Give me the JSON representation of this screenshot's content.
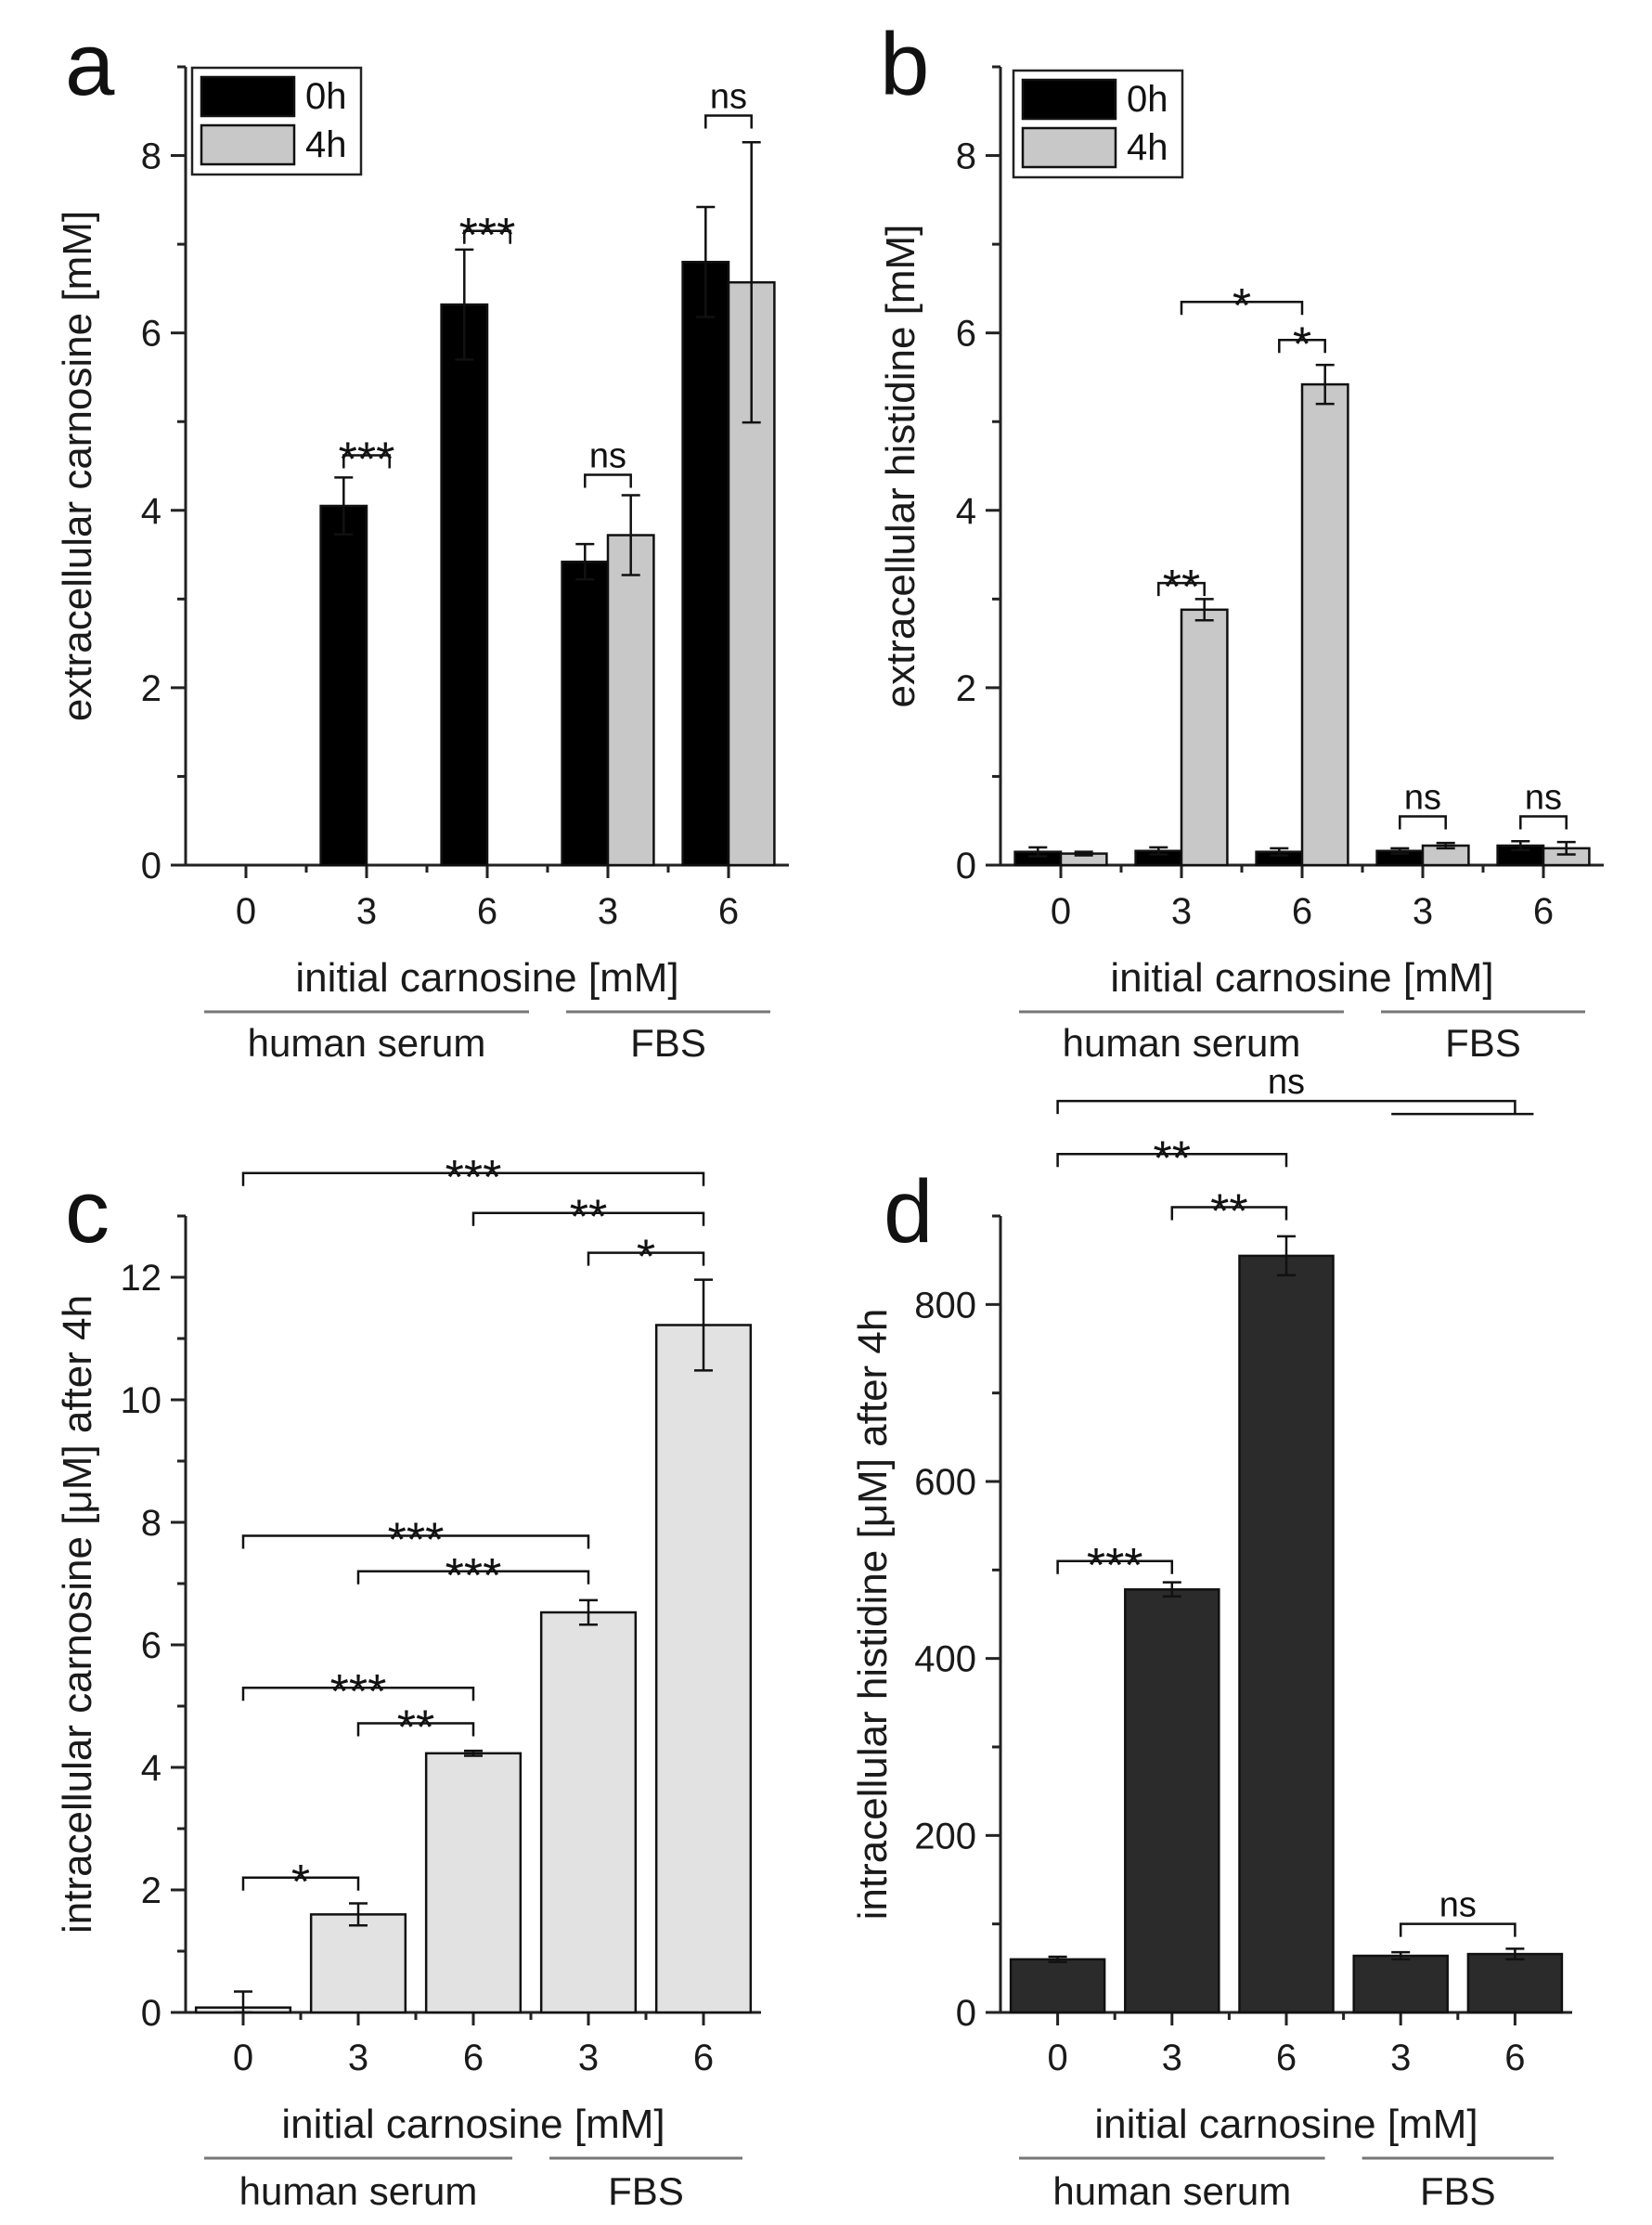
{
  "colors": {
    "black_bar": "#000000",
    "light_gray_bar": "#c8c8c8",
    "very_light_bar": "#e2e2e2",
    "dark_bar": "#2b2b2b",
    "axis": "#222222",
    "underline": "#777777"
  },
  "chart_data": [
    {
      "panel": "a",
      "type": "bar",
      "ylabel": "extracellular carnosine [mM]",
      "xlabel": "initial carnosine [mM]",
      "ylim": [
        0,
        9
      ],
      "yticks": [
        0,
        2,
        4,
        6,
        8
      ],
      "categories": [
        "0",
        "3",
        "6",
        "3",
        "6"
      ],
      "groups": [
        {
          "label": "human serum",
          "from": 0,
          "to": 2
        },
        {
          "label": "FBS",
          "from": 3,
          "to": 4
        }
      ],
      "legend": [
        "0h",
        "4h"
      ],
      "series": [
        {
          "name": "0h",
          "color": "black_bar",
          "values": [
            0,
            4.05,
            6.32,
            3.42,
            6.8
          ],
          "errors": [
            0,
            0.32,
            0.62,
            0.2,
            0.62
          ]
        },
        {
          "name": "4h",
          "color": "light_gray_bar",
          "values": [
            0,
            0,
            0,
            3.72,
            6.57
          ],
          "errors": [
            0,
            0,
            0,
            0.45,
            1.58
          ]
        }
      ],
      "significance": [
        {
          "label": "***",
          "type": "pair",
          "index": 1,
          "y": 4.62
        },
        {
          "label": "***",
          "type": "pair",
          "index": 2,
          "y": 7.15
        },
        {
          "label": "ns",
          "type": "pair",
          "index": 3,
          "y": 4.4
        },
        {
          "label": "ns",
          "type": "pair",
          "index": 4,
          "y": 8.45
        }
      ]
    },
    {
      "panel": "b",
      "type": "bar",
      "ylabel": "extracellular histidine [mM]",
      "xlabel": "initial carnosine [mM]",
      "ylim": [
        0,
        9
      ],
      "yticks": [
        0,
        2,
        4,
        6,
        8
      ],
      "categories": [
        "0",
        "3",
        "6",
        "3",
        "6"
      ],
      "groups": [
        {
          "label": "human serum",
          "from": 0,
          "to": 2
        },
        {
          "label": "FBS",
          "from": 3,
          "to": 4
        }
      ],
      "legend": [
        "0h",
        "4h"
      ],
      "series": [
        {
          "name": "0h",
          "color": "black_bar",
          "values": [
            0.15,
            0.16,
            0.15,
            0.16,
            0.22
          ],
          "errors": [
            0.05,
            0.04,
            0.04,
            0.03,
            0.05
          ]
        },
        {
          "name": "4h",
          "color": "light_gray_bar",
          "values": [
            0.13,
            2.88,
            5.42,
            0.22,
            0.19
          ],
          "errors": [
            0.02,
            0.12,
            0.22,
            0.03,
            0.07
          ]
        }
      ],
      "significance": [
        {
          "label": "**",
          "type": "pair",
          "index": 1,
          "y": 3.18
        },
        {
          "label": "*",
          "type": "pair",
          "index": 2,
          "y": 5.92
        },
        {
          "label": "*",
          "type": "span",
          "from": 1,
          "to": 2,
          "y": 6.35
        },
        {
          "label": "ns",
          "type": "pair",
          "index": 3,
          "y": 0.55
        },
        {
          "label": "ns",
          "type": "pair",
          "index": 4,
          "y": 0.55
        }
      ]
    },
    {
      "panel": "c",
      "type": "bar",
      "ylabel": "intracellular carnosine [μM] after 4h",
      "xlabel": "initial carnosine [mM]",
      "ylim": [
        0,
        13
      ],
      "yticks": [
        0,
        2,
        4,
        6,
        8,
        10,
        12
      ],
      "categories": [
        "0",
        "3",
        "6",
        "3",
        "6"
      ],
      "groups": [
        {
          "label": "human serum",
          "from": 0,
          "to": 2
        },
        {
          "label": "FBS",
          "from": 3,
          "to": 4
        }
      ],
      "series": [
        {
          "name": "4h",
          "color": "very_light_bar",
          "values": [
            0.08,
            1.6,
            4.23,
            6.53,
            11.22
          ],
          "errors": [
            0.26,
            0.18,
            0.04,
            0.2,
            0.74
          ]
        }
      ],
      "significance": [
        {
          "label": "*",
          "type": "span",
          "from": 0,
          "to": 1,
          "y": 2.2
        },
        {
          "label": "**",
          "type": "span",
          "from": 1,
          "to": 2,
          "y": 4.72
        },
        {
          "label": "***",
          "type": "span",
          "from": 0,
          "to": 2,
          "y": 5.3
        },
        {
          "label": "***",
          "type": "span",
          "from": 1,
          "to": 3,
          "y": 7.2
        },
        {
          "label": "***",
          "type": "span",
          "from": 0,
          "to": 3,
          "y": 7.78
        },
        {
          "label": "*",
          "type": "span",
          "from": 3,
          "to": 4,
          "y": 12.4
        },
        {
          "label": "**",
          "type": "span",
          "from": 2,
          "to": 4,
          "y": 13.05
        },
        {
          "label": "***",
          "type": "span",
          "from": 0,
          "to": 4,
          "y": 13.7
        }
      ]
    },
    {
      "panel": "d",
      "type": "bar",
      "ylabel": "intracellular histidine [μM] after 4h",
      "xlabel": "initial carnosine [mM]",
      "ylim": [
        0,
        900
      ],
      "yticks": [
        0,
        200,
        400,
        600,
        800
      ],
      "categories": [
        "0",
        "3",
        "6",
        "3",
        "6"
      ],
      "groups": [
        {
          "label": "human serum",
          "from": 0,
          "to": 2
        },
        {
          "label": "FBS",
          "from": 3,
          "to": 4
        }
      ],
      "series": [
        {
          "name": "4h",
          "color": "dark_bar",
          "values": [
            60,
            478,
            855,
            64,
            66
          ],
          "errors": [
            3,
            8,
            22,
            4,
            6
          ]
        }
      ],
      "significance": [
        {
          "label": "***",
          "type": "span",
          "from": 0,
          "to": 1,
          "y": 510
        },
        {
          "label": "ns",
          "type": "span",
          "from": 3,
          "to": 4,
          "y": 100
        },
        {
          "label": "**",
          "type": "span",
          "from": 1,
          "to": 2,
          "y": 910
        },
        {
          "label": "**",
          "type": "span",
          "from": 0,
          "to": 2,
          "y": 970
        },
        {
          "label": "ns",
          "type": "ns_far",
          "from": 0,
          "to": 4,
          "y": 1030
        }
      ]
    }
  ]
}
